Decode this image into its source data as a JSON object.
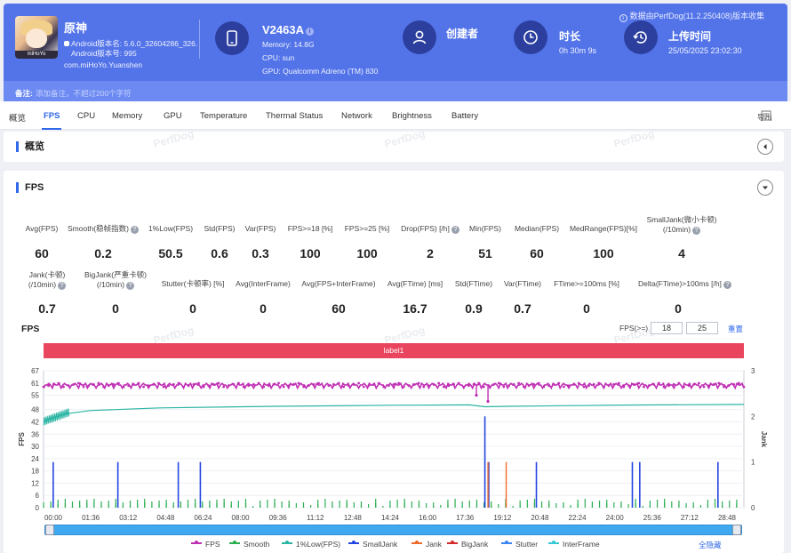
{
  "header": {
    "source_note": "数据由PerfDog(11.2.250408)版本收集",
    "app": {
      "name": "原神",
      "avatar_tag": "miHoYo",
      "version_line": "Android版本名: 5.6.0_32604286_326...",
      "version_code_line": "Android版本号: 995",
      "package": "com.miHoYo.Yuanshen"
    },
    "device": {
      "name": "V2463A",
      "memory": "Memory: 14.8G",
      "cpu": "CPU: sun",
      "gpu": "GPU: Qualcomm Adreno (TM) 830"
    },
    "creator_label": "创建者",
    "duration_label": "时长",
    "duration_value": "0h 30m 9s",
    "upload_label": "上传时间",
    "upload_value": "25/05/2025 23:02:30",
    "note_label": "备注:",
    "note_placeholder": "添加备注，不超过200个字符"
  },
  "tabs": [
    {
      "label": "概览"
    },
    {
      "label": "FPS"
    },
    {
      "label": "CPU"
    },
    {
      "label": "Memory"
    },
    {
      "label": "GPU"
    },
    {
      "label": "Temperature"
    },
    {
      "label": "Thermal Status"
    },
    {
      "label": "Network"
    },
    {
      "label": "Brightness"
    },
    {
      "label": "Battery"
    }
  ],
  "active_tab": "FPS",
  "export_label": "导出",
  "watermark": "PerfDog",
  "overview": {
    "title": "概览"
  },
  "fps_panel": {
    "title": "FPS",
    "metrics_row1": [
      {
        "label": "Avg(FPS)",
        "value": "60",
        "help": false
      },
      {
        "label": "Smooth(稳帧指数)",
        "value": "0.2",
        "help": true
      },
      {
        "label": "1%Low(FPS)",
        "value": "50.5",
        "help": false
      },
      {
        "label": "Std(FPS)",
        "value": "0.6",
        "help": false
      },
      {
        "label": "Var(FPS)",
        "value": "0.3",
        "help": false
      },
      {
        "label": "FPS>=18 [%]",
        "value": "100",
        "help": false
      },
      {
        "label": "FPS>=25 [%]",
        "value": "100",
        "help": false
      },
      {
        "label": "Drop(FPS) [/h]",
        "value": "2",
        "help": true
      },
      {
        "label": "Min(FPS)",
        "value": "51",
        "help": false
      },
      {
        "label": "Median(FPS)",
        "value": "60",
        "help": false
      },
      {
        "label": "MedRange(FPS)[%]",
        "value": "100",
        "help": false
      },
      {
        "label": "SmallJank(微小卡顿)\n(/10min)",
        "value": "4",
        "help": true
      }
    ],
    "metrics_row2": [
      {
        "label": "Jank(卡顿)\n(/10min)",
        "value": "0.7",
        "help": true
      },
      {
        "label": "BigJank(严重卡顿)\n(/10min)",
        "value": "0",
        "help": true
      },
      {
        "label": "Stutter(卡顿率) [%]",
        "value": "0",
        "help": false
      },
      {
        "label": "Avg(InterFrame)",
        "value": "0",
        "help": false
      },
      {
        "label": "Avg(FPS+InterFrame)",
        "value": "60",
        "help": false
      },
      {
        "label": "Avg(FTime) [ms]",
        "value": "16.7",
        "help": false
      },
      {
        "label": "Std(FTime)",
        "value": "0.9",
        "help": false
      },
      {
        "label": "Var(FTime)",
        "value": "0.7",
        "help": false
      },
      {
        "label": "FTime>=100ms [%]",
        "value": "0",
        "help": false
      },
      {
        "label": "Delta(FTime)>100ms [/h]",
        "value": "0",
        "help": true
      }
    ],
    "chart_title": "FPS",
    "filter_label": "FPS(>=)",
    "filter_value_1": "18",
    "filter_value_2": "25",
    "reset_label": "重置",
    "label_bar": "label1",
    "hide_all_label": "全隐藏"
  },
  "chart_data": {
    "type": "line",
    "title": "",
    "ylabel": "FPS",
    "y2label": "Jank",
    "ylim": [
      0,
      67
    ],
    "y2lim": [
      0,
      3
    ],
    "yticks": [
      0,
      6,
      12,
      18,
      24,
      30,
      36,
      42,
      48,
      55,
      61,
      67
    ],
    "y2ticks": [
      0,
      1,
      2,
      3
    ],
    "xticks": [
      "00:00",
      "01:36",
      "03:12",
      "04:48",
      "06:24",
      "08:00",
      "09:36",
      "11:12",
      "12:48",
      "14:24",
      "16:00",
      "17:36",
      "19:12",
      "20:48",
      "22:24",
      "24:00",
      "25:36",
      "27:12",
      "28:48"
    ],
    "duration_seconds": 1809,
    "series": [
      {
        "name": "FPS",
        "color": "#c02fb4",
        "approx_value": 60,
        "dips": [
          [
            1118,
            55
          ],
          [
            1148,
            52
          ]
        ]
      },
      {
        "name": "Smooth",
        "color": "#2cae4f"
      },
      {
        "name": "1%Low(FPS)",
        "color": "#2bb5a4",
        "points": [
          [
            0,
            42
          ],
          [
            20,
            44
          ],
          [
            60,
            46
          ],
          [
            120,
            47.5
          ],
          [
            300,
            48.8
          ],
          [
            600,
            49.6
          ],
          [
            900,
            50.1
          ],
          [
            1100,
            50.3
          ],
          [
            1140,
            49.4
          ],
          [
            1200,
            49.6
          ],
          [
            1500,
            50.2
          ],
          [
            1809,
            50.5
          ]
        ]
      },
      {
        "name": "SmallJank",
        "color": "#2446e0",
        "at": [
          [
            25,
            1
          ],
          [
            192,
            1
          ],
          [
            348,
            1
          ],
          [
            405,
            1
          ],
          [
            1140,
            2
          ],
          [
            1150,
            1
          ],
          [
            1540,
            1
          ],
          [
            1900,
            1
          ],
          [
            2270,
            1
          ],
          [
            2600,
            1
          ]
        ]
      },
      {
        "name": "Jank",
        "color": "#ef6a2a",
        "at": [
          [
            1148,
            1
          ],
          [
            1195,
            1
          ]
        ]
      },
      {
        "name": "BigJank",
        "color": "#d62b2b"
      },
      {
        "name": "Stutter",
        "color": "#3b86f2"
      },
      {
        "name": "InterFrame",
        "color": "#36c8d6"
      }
    ]
  }
}
